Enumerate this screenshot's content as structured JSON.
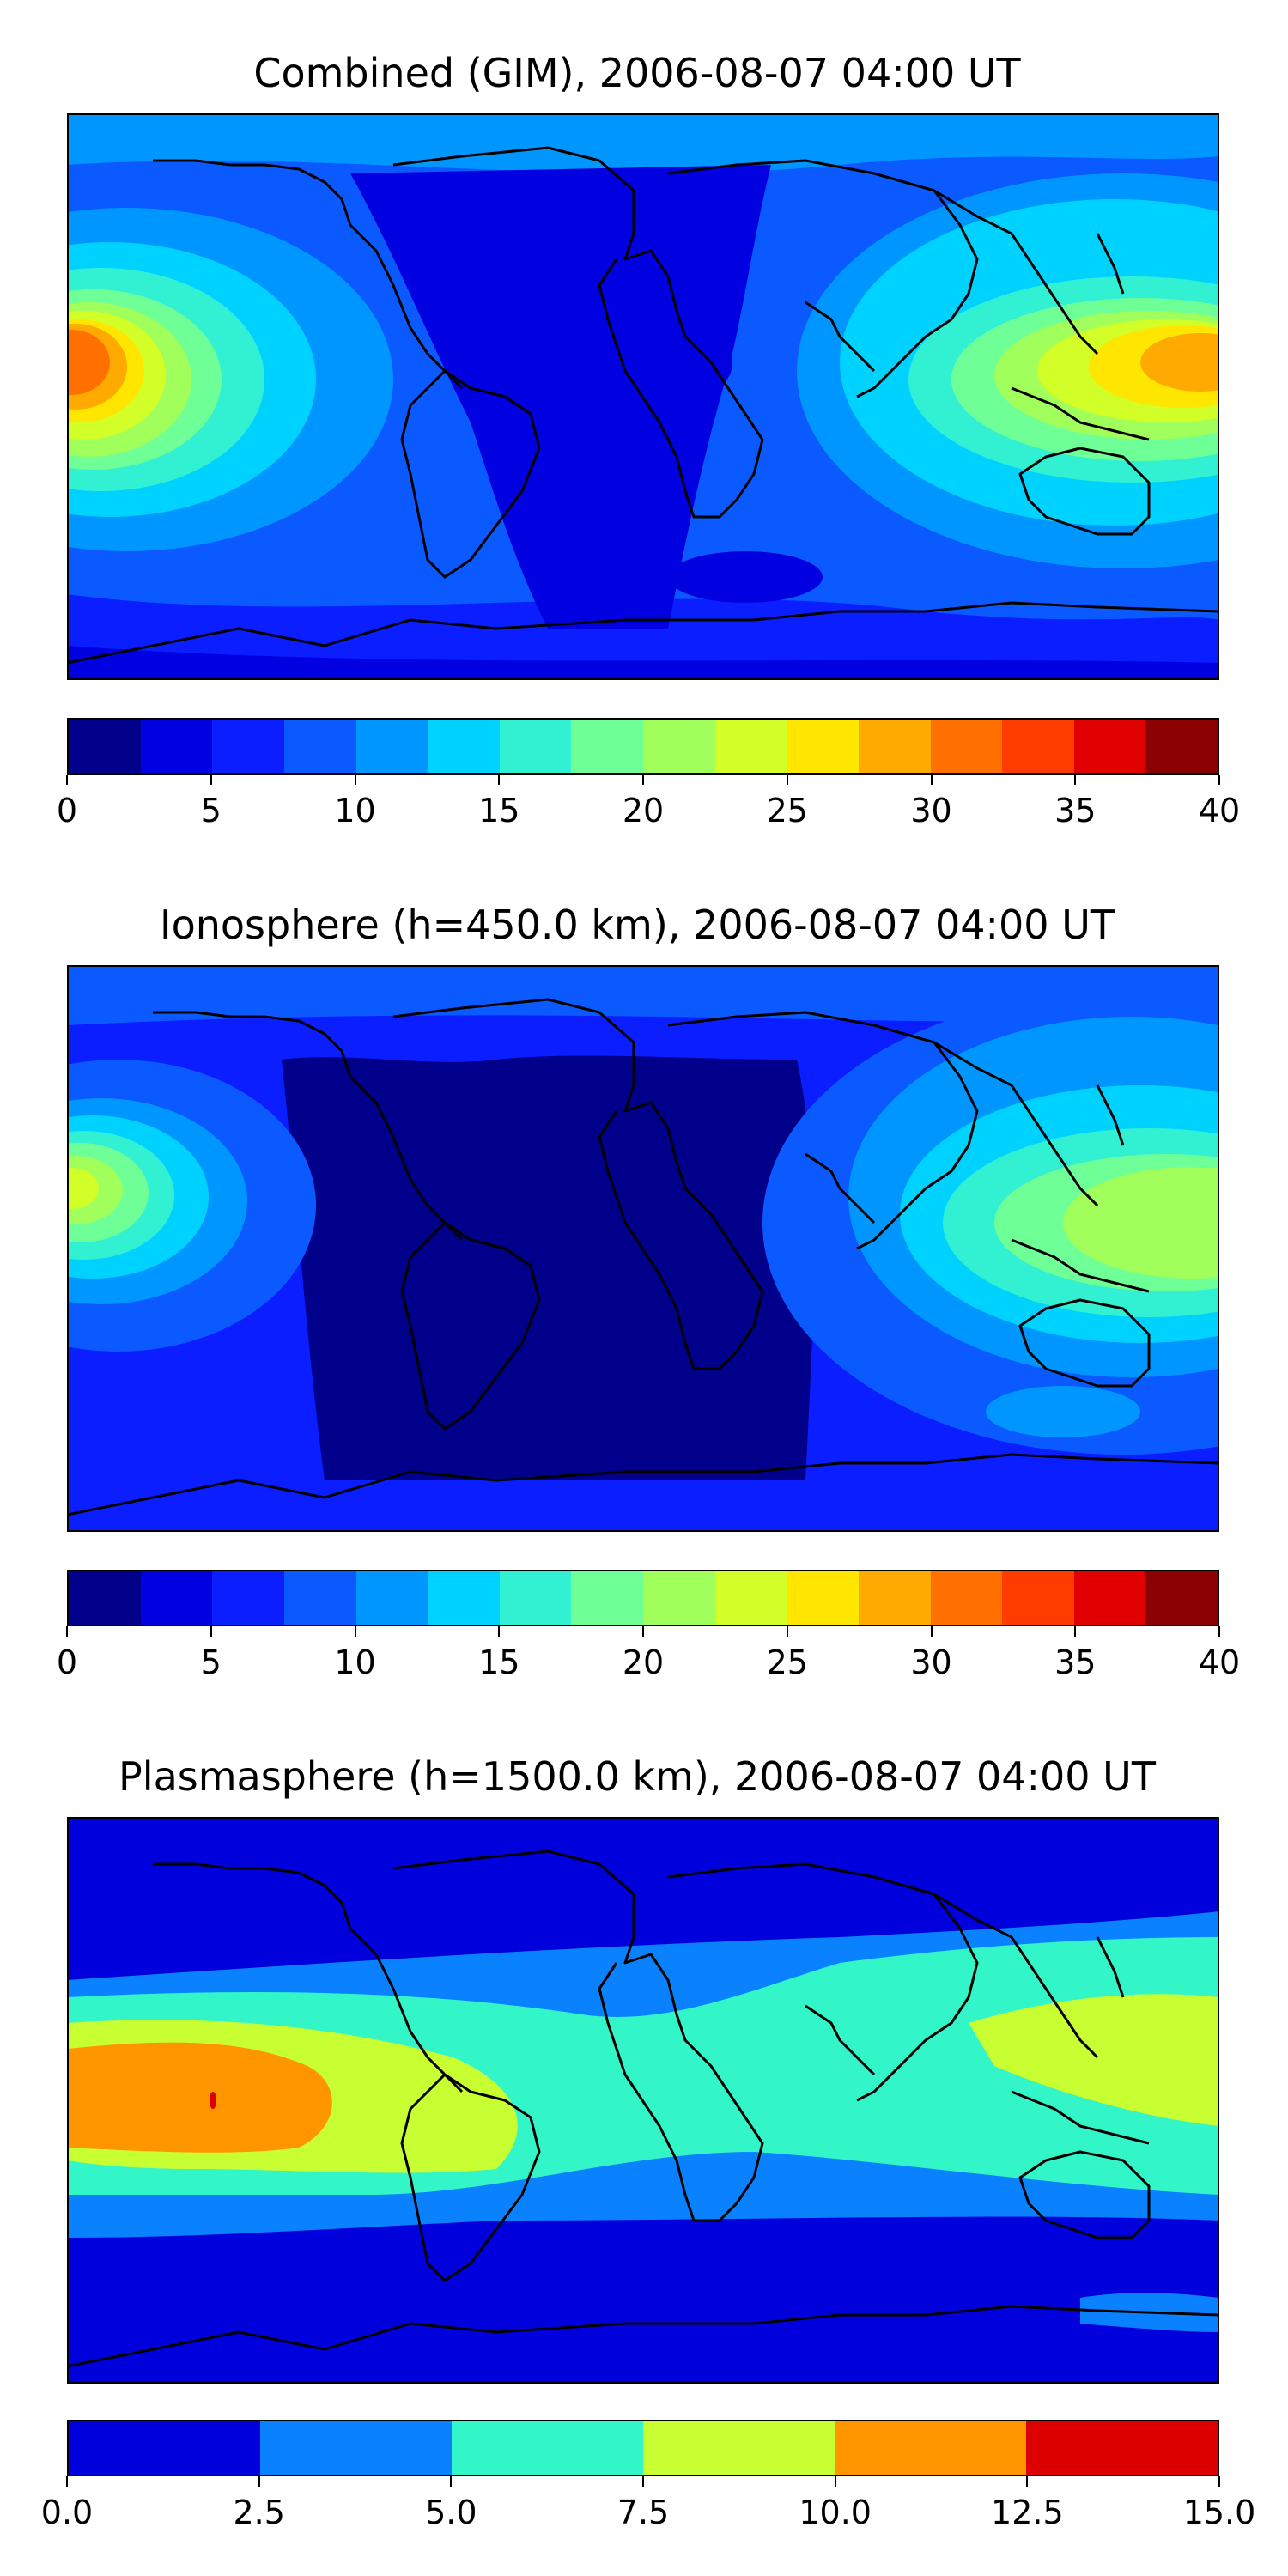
{
  "coastline_color": "#000000",
  "panels": [
    {
      "title": "Combined (GIM), 2006-08-07 04:00 UT",
      "map_features": [
        "coastlines",
        "filled-contours"
      ],
      "colorbar": {
        "ticks": [
          "0",
          "5",
          "10",
          "15",
          "20",
          "25",
          "30",
          "35",
          "40"
        ],
        "colors": [
          "#00008b",
          "#0000e0",
          "#0a1eff",
          "#0a5aff",
          "#0096ff",
          "#00d2ff",
          "#32f0d2",
          "#6eff96",
          "#a0ff5a",
          "#d2ff28",
          "#ffe600",
          "#ffaa00",
          "#ff7000",
          "#ff3c00",
          "#e00000",
          "#8b0000"
        ]
      }
    },
    {
      "title": "Ionosphere  (h=450.0 km), 2006-08-07 04:00 UT",
      "map_features": [
        "coastlines",
        "filled-contours"
      ],
      "colorbar": {
        "ticks": [
          "0",
          "5",
          "10",
          "15",
          "20",
          "25",
          "30",
          "35",
          "40"
        ],
        "colors": [
          "#00008b",
          "#0000e0",
          "#0a1eff",
          "#0a5aff",
          "#0096ff",
          "#00d2ff",
          "#32f0d2",
          "#6eff96",
          "#a0ff5a",
          "#d2ff28",
          "#ffe600",
          "#ffaa00",
          "#ff7000",
          "#ff3c00",
          "#e00000",
          "#8b0000"
        ]
      }
    },
    {
      "title": "Plasmasphere (h=1500.0 km), 2006-08-07 04:00 UT",
      "map_features": [
        "coastlines",
        "filled-contours"
      ],
      "colorbar": {
        "ticks": [
          "0.0",
          "2.5",
          "5.0",
          "7.5",
          "10.0",
          "12.5",
          "15.0"
        ],
        "colors": [
          "#0000dc",
          "#0a82ff",
          "#32f5c8",
          "#c8ff32",
          "#ff9600",
          "#dc0000"
        ]
      }
    }
  ]
}
